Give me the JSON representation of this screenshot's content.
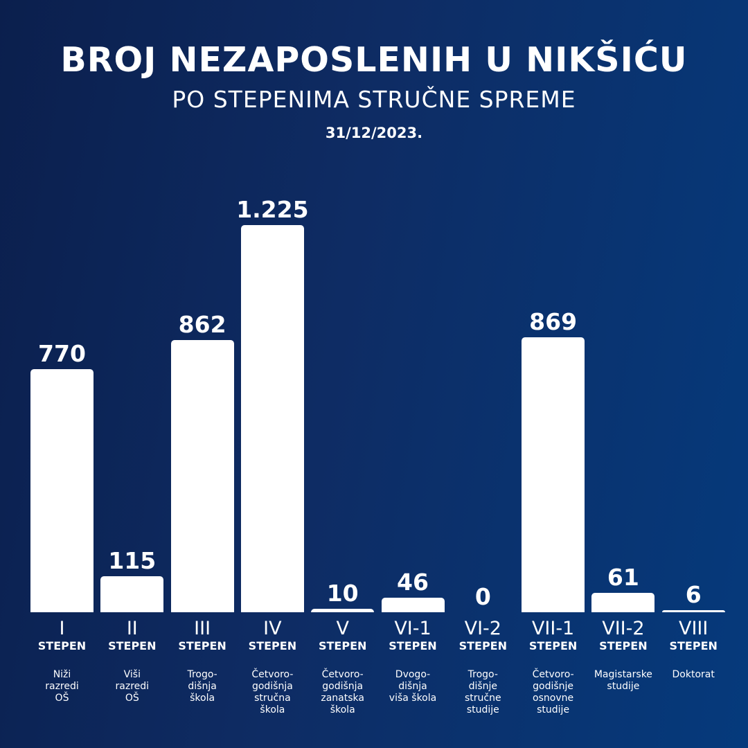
{
  "header": {
    "title": "BROJ NEZAPOSLENIH U NIKŠIĆU",
    "subtitle": "PO STEPENIMA STRUČNE SPREME",
    "date": "31/12/2023."
  },
  "colors": {
    "bar": "#ffffff",
    "background_left": "#0b1f4d",
    "background_right": "#053a7c"
  },
  "chart_data": {
    "type": "bar",
    "title": "BROJ NEZAPOSLENIH U NIKŠIĆU",
    "subtitle": "PO STEPENIMA STRUČNE SPREME",
    "categories": [
      "I",
      "II",
      "III",
      "IV",
      "V",
      "VI-1",
      "VI-2",
      "VII-1",
      "VII-2",
      "VIII"
    ],
    "category_suffix": "STEPEN",
    "descriptions": [
      [
        "Niži",
        "razredi",
        "OŠ"
      ],
      [
        "Viši",
        "razredi",
        "OŠ"
      ],
      [
        "Trogo-",
        "dišnja",
        "škola"
      ],
      [
        "Četvoro-",
        "godišnja",
        "stručna",
        "škola"
      ],
      [
        "Četvoro-",
        "godišnja",
        "zanatska",
        "škola"
      ],
      [
        "Dvogo-",
        "dišnja",
        "viša škola"
      ],
      [
        "Trogo-",
        "dišnje",
        "stručne",
        "studije"
      ],
      [
        "Četvoro-",
        "godišnje",
        "osnovne",
        "studije"
      ],
      [
        "Magistarske",
        "studije"
      ],
      [
        "Doktorat"
      ]
    ],
    "values": [
      770,
      115,
      862,
      1225,
      10,
      46,
      0,
      869,
      61,
      6
    ],
    "value_labels": [
      "770",
      "115",
      "862",
      "1.225",
      "10",
      "46",
      "0",
      "869",
      "61",
      "6"
    ],
    "ylim": [
      0,
      1225
    ],
    "grid": false,
    "legend": "none"
  }
}
